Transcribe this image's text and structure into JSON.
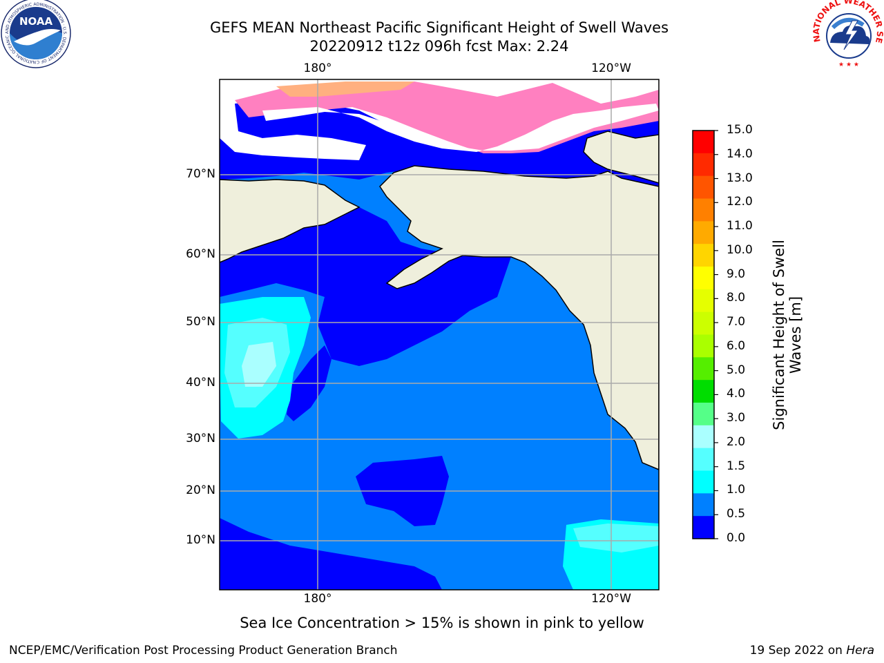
{
  "title_line1": "GEFS MEAN Northeast Pacific Significant Height of Swell Waves",
  "title_line2": "20220912 t12z 096h fcst   Max: 2.24",
  "longitude_labels": [
    "180°",
    "120°W"
  ],
  "latitude_labels": [
    "70°N",
    "60°N",
    "50°N",
    "40°N",
    "30°N",
    "20°N",
    "10°N"
  ],
  "colorbar": {
    "label": "Significant Height of Swell Waves [m]",
    "ticks": [
      "15.0",
      "14.0",
      "13.0",
      "12.0",
      "11.0",
      "10.0",
      "9.0",
      "8.0",
      "7.0",
      "6.0",
      "5.0",
      "4.0",
      "3.0",
      "2.0",
      "1.5",
      "1.0",
      "0.5",
      "0.0"
    ],
    "colors": [
      "#ff0000",
      "#ff2a00",
      "#ff5500",
      "#ff8000",
      "#ffaa00",
      "#ffd500",
      "#ffff00",
      "#e5ff00",
      "#ccff00",
      "#aaff00",
      "#55ee00",
      "#00dd00",
      "#55ff88",
      "#aaffff",
      "#55ffff",
      "#00ffff",
      "#0080ff",
      "#0000ff"
    ]
  },
  "caption": "Sea Ice Concentration > 15% is shown in pink to yellow",
  "footer_left": "NCEP/EMC/Verification Post Processing Product Generation Branch",
  "footer_right_date": "19 Sep 2022 on ",
  "footer_right_machine": "Hera",
  "logo_noaa": {
    "text": "NOAA",
    "ring": "NATIONAL OCEANIC AND ATMOSPHERIC ADMINISTRATION · U.S. DEPARTMENT OF COMMERCE"
  },
  "logo_nws": {
    "ring": "NATIONAL WEATHER SERVICE"
  }
}
